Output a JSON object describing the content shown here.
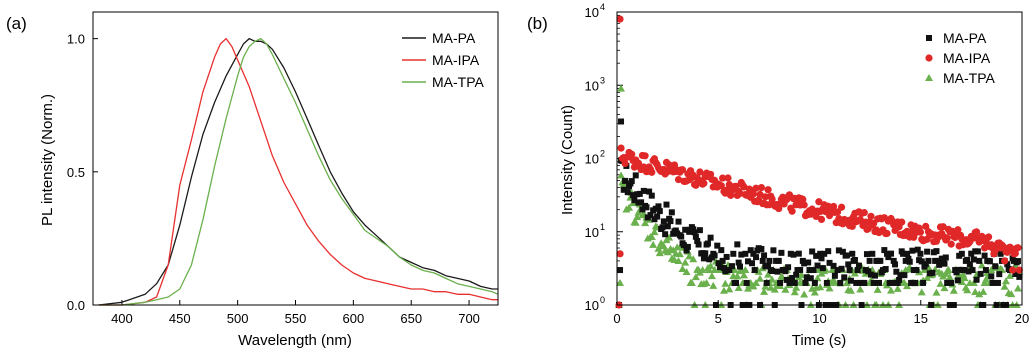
{
  "chart_data": [
    {
      "panel_label": "(a)",
      "type": "line",
      "xlabel": "Wavelength (nm)",
      "ylabel": "PL intensity (Norm.)",
      "xlim": [
        375,
        725
      ],
      "ylim": [
        0,
        1.1
      ],
      "xticks": [
        400,
        450,
        500,
        550,
        600,
        650,
        700
      ],
      "yticks": [
        0.0,
        0.5,
        1.0
      ],
      "ytick_labels": [
        "0.0",
        "0.5",
        "1.0"
      ],
      "legend_position": "top-right",
      "series": [
        {
          "name": "MA-PA",
          "color": "#1a1a1a",
          "x": [
            380,
            400,
            420,
            430,
            440,
            450,
            460,
            470,
            480,
            490,
            500,
            505,
            510,
            515,
            520,
            525,
            530,
            540,
            550,
            560,
            570,
            580,
            590,
            600,
            610,
            620,
            630,
            640,
            650,
            660,
            670,
            680,
            690,
            700,
            710,
            720,
            725
          ],
          "y": [
            0.0,
            0.01,
            0.04,
            0.08,
            0.15,
            0.3,
            0.48,
            0.64,
            0.76,
            0.86,
            0.94,
            0.98,
            1.0,
            0.99,
            0.99,
            0.98,
            0.96,
            0.89,
            0.8,
            0.7,
            0.6,
            0.5,
            0.42,
            0.35,
            0.3,
            0.26,
            0.22,
            0.18,
            0.16,
            0.14,
            0.13,
            0.11,
            0.1,
            0.09,
            0.07,
            0.06,
            0.06
          ]
        },
        {
          "name": "MA-IPA",
          "color": "#e8302f",
          "x": [
            380,
            400,
            420,
            430,
            440,
            450,
            460,
            470,
            480,
            485,
            490,
            495,
            500,
            510,
            520,
            530,
            540,
            550,
            560,
            570,
            580,
            590,
            600,
            610,
            620,
            630,
            640,
            650,
            660,
            670,
            680,
            690,
            700,
            710,
            720,
            725
          ],
          "y": [
            0.0,
            0.0,
            0.01,
            0.03,
            0.15,
            0.45,
            0.62,
            0.8,
            0.93,
            0.98,
            1.0,
            0.97,
            0.92,
            0.82,
            0.69,
            0.56,
            0.46,
            0.38,
            0.3,
            0.24,
            0.19,
            0.15,
            0.12,
            0.1,
            0.09,
            0.08,
            0.07,
            0.06,
            0.06,
            0.05,
            0.05,
            0.04,
            0.04,
            0.03,
            0.02,
            0.02
          ]
        },
        {
          "name": "MA-TPA",
          "color": "#6ab04c",
          "x": [
            380,
            400,
            420,
            430,
            440,
            450,
            460,
            470,
            480,
            490,
            500,
            505,
            510,
            515,
            520,
            525,
            530,
            540,
            550,
            560,
            570,
            580,
            590,
            600,
            610,
            620,
            630,
            640,
            650,
            660,
            670,
            680,
            690,
            700,
            710,
            720,
            725
          ],
          "y": [
            0.0,
            0.0,
            0.01,
            0.02,
            0.03,
            0.06,
            0.15,
            0.32,
            0.52,
            0.7,
            0.86,
            0.93,
            0.97,
            0.99,
            1.0,
            0.98,
            0.94,
            0.85,
            0.76,
            0.66,
            0.56,
            0.47,
            0.4,
            0.34,
            0.28,
            0.25,
            0.22,
            0.18,
            0.15,
            0.13,
            0.12,
            0.1,
            0.08,
            0.07,
            0.06,
            0.05,
            0.04
          ]
        }
      ]
    },
    {
      "panel_label": "(b)",
      "type": "scatter",
      "xlabel": "Time (s)",
      "ylabel": "Intensity (Count)",
      "xlim": [
        0,
        20
      ],
      "ylim": [
        1,
        10000
      ],
      "yscale": "log",
      "xticks": [
        0,
        5,
        10,
        15,
        20
      ],
      "yticks": [
        1,
        10,
        100,
        1000,
        10000
      ],
      "ytick_base": "10",
      "ytick_exponents": [
        "0",
        "1",
        "2",
        "3",
        "4"
      ],
      "legend_position": "top-right",
      "series": [
        {
          "name": "MA-PA",
          "color": "#111111",
          "marker": "square",
          "peak": [
            [
              0.1,
              320
            ],
            [
              0.0,
              1
            ],
            [
              0.05,
              3
            ]
          ],
          "decay": {
            "amplitude": 70,
            "tau": 1.3,
            "baseline": 3.5,
            "jitter_log10": 0.22,
            "noise_floor": [
              1,
              2,
              3,
              4,
              5
            ]
          }
        },
        {
          "name": "MA-IPA",
          "color": "#e02828",
          "marker": "circle",
          "peak": [
            [
              0.05,
              8000
            ],
            [
              0.0,
              1
            ],
            [
              0.05,
              5
            ]
          ],
          "decay": {
            "amplitude": 110,
            "tau": 5.0,
            "baseline": 4.5,
            "jitter_log10": 0.12,
            "noise_floor": [
              3,
              4,
              5,
              6
            ]
          }
        },
        {
          "name": "MA-TPA",
          "color": "#6ab04c",
          "marker": "triangle",
          "peak": [
            [
              0.1,
              900
            ],
            [
              0.0,
              1
            ],
            [
              0.05,
              2
            ]
          ],
          "decay": {
            "amplitude": 45,
            "tau": 1.0,
            "baseline": 2.2,
            "jitter_log10": 0.2,
            "noise_floor": [
              1,
              2,
              3
            ]
          }
        }
      ]
    }
  ]
}
